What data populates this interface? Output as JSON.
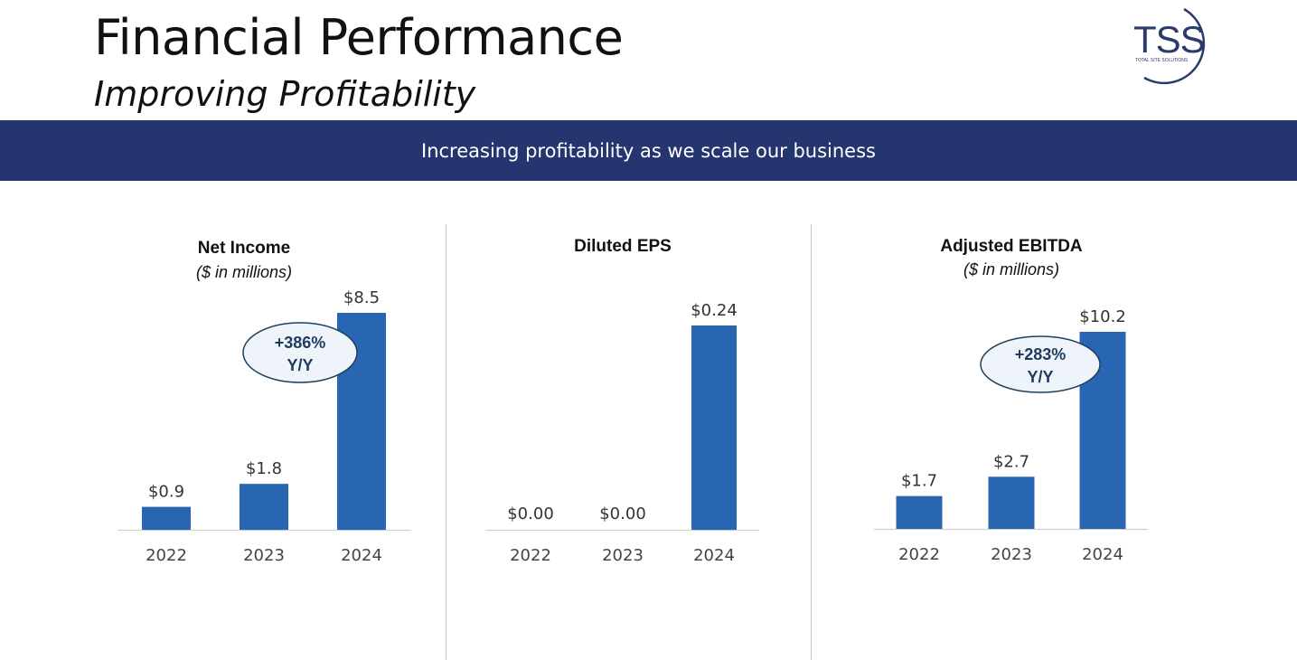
{
  "header": {
    "title": "Financial Performance",
    "subtitle": "Improving Profitability",
    "logo_text": "TSS",
    "logo_tagline": "TOTAL SITE SOLUTIONS"
  },
  "banner": {
    "text": "Increasing profitability as we scale our business"
  },
  "colors": {
    "bar": "#2866B1",
    "banner": "#253570",
    "callout_fill": "#EEF4F9",
    "callout_stroke": "#1F3F5F"
  },
  "chart_data": [
    {
      "type": "bar",
      "title": "Net Income",
      "subtitle": "($ in millions)",
      "categories": [
        "2022",
        "2023",
        "2024"
      ],
      "values": [
        0.9,
        1.8,
        8.5
      ],
      "labels": [
        "$0.9",
        "$1.8",
        "$8.5"
      ],
      "ylim": [
        0,
        8.5
      ],
      "callout": {
        "line1": "+386%",
        "line2": "Y/Y"
      }
    },
    {
      "type": "bar",
      "title": "Diluted EPS",
      "subtitle": "",
      "categories": [
        "2022",
        "2023",
        "2024"
      ],
      "values": [
        0.0,
        0.0,
        0.24
      ],
      "labels": [
        "$0.00",
        "$0.00",
        "$0.24"
      ],
      "ylim": [
        0,
        0.24
      ],
      "callout": null
    },
    {
      "type": "bar",
      "title": "Adjusted EBITDA",
      "subtitle": "($ in millions)",
      "categories": [
        "2022",
        "2023",
        "2024"
      ],
      "values": [
        1.7,
        2.7,
        10.2
      ],
      "labels": [
        "$1.7",
        "$2.7",
        "$10.2"
      ],
      "ylim": [
        0,
        10.2
      ],
      "callout": {
        "line1": "+283%",
        "line2": "Y/Y"
      }
    }
  ]
}
